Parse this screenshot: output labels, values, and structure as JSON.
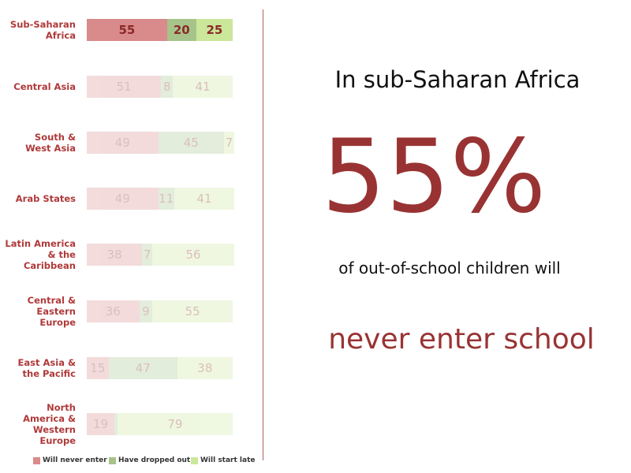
{
  "chart_data": {
    "type": "stacked-bar-horizontal",
    "categories": [
      "Sub-Saharan\nAfrica",
      "Central Asia",
      "South &\nWest Asia",
      "Arab States",
      "Latin America\n& the\nCaribbean",
      "Central &\nEastern\nEurope",
      "East Asia &\nthe Pacific",
      "North\nAmerica &\nWestern\nEurope"
    ],
    "series": [
      {
        "name": "Will never enter",
        "color": "#d98a8a",
        "values": [
          55,
          51,
          49,
          49,
          38,
          36,
          15,
          19
        ]
      },
      {
        "name": "Have dropped out",
        "color": "#a6c48a",
        "values": [
          20,
          8,
          45,
          11,
          7,
          9,
          47,
          2
        ],
        "value_labels": [
          "20",
          "8",
          "45",
          "11",
          "7",
          "9",
          "47",
          null
        ]
      },
      {
        "name": "Will start late",
        "color": "#cbe79a",
        "values": [
          25,
          41,
          7,
          41,
          56,
          55,
          38,
          79
        ]
      }
    ],
    "xlim": [
      0,
      100
    ],
    "highlight_index": 0
  },
  "panel": {
    "headline": "In sub-Saharan Africa",
    "big_number": "55%",
    "subline": "of out-of-school children will",
    "emphasis": "never enter school"
  }
}
